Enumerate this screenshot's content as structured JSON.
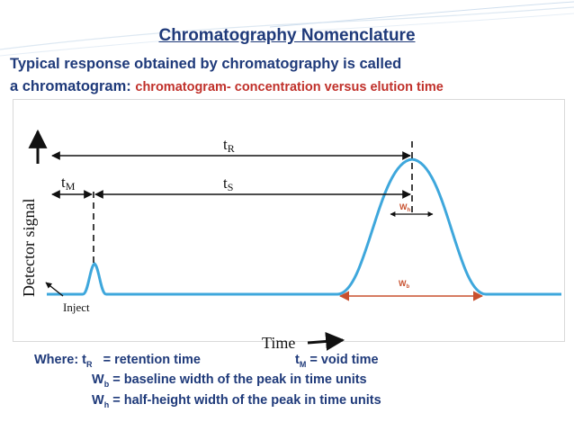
{
  "slide": {
    "title": "Chromatography Nomenclature",
    "intro_line1": "Typical response obtained by chromatography is called",
    "intro_line2_prefix": "a chromatogram:",
    "intro_line2_highlight": "chromatogram- concentration versus elution time"
  },
  "diagram": {
    "y_axis_label": "Detector signal",
    "x_axis_label": "Time",
    "inject_label": "Inject",
    "tR": {
      "main": "t",
      "sub": "R"
    },
    "tM": {
      "main": "t",
      "sub": "M"
    },
    "tS": {
      "main": "t",
      "sub": "S"
    },
    "wh": {
      "main": "W",
      "sub": "h"
    },
    "wb": {
      "main": "W",
      "sub": "b"
    },
    "colors": {
      "curve": "#3ea7dc",
      "wb_arrow": "#c8502e",
      "text_blue": "#1f3a7a",
      "text_red": "#c0302a"
    }
  },
  "legend": {
    "where": "Where: t",
    "tR_sub": "R",
    "tR_def": "= retention time",
    "tM_main": "t",
    "tM_sub": "M",
    "tM_def": "= void time",
    "wb_main": "W",
    "wb_sub": "b",
    "wb_def": "= baseline width of the peak in time units",
    "wh_main": "W",
    "wh_sub": "h",
    "wh_def": "= half-height width of the peak in time units"
  }
}
